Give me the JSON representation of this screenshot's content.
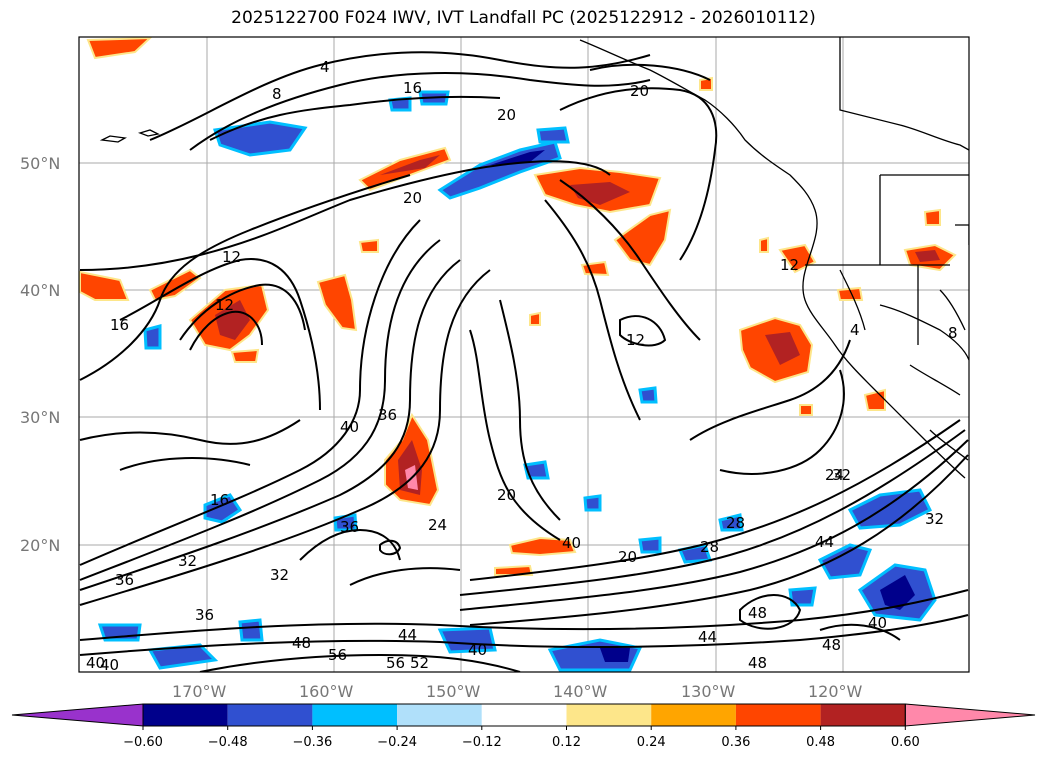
{
  "title": "2025122700 F024 IWV, IVT Landfall PC (2025122912 - 2026010112)",
  "lat_labels": [
    "50°N",
    "40°N",
    "30°N",
    "20°N"
  ],
  "lon_labels": [
    "170°W",
    "160°W",
    "150°W",
    "140°W",
    "130°W",
    "120°W"
  ],
  "colorbar": {
    "ticks": [
      "−0.60",
      "−0.48",
      "−0.36",
      "−0.24",
      "−0.12",
      "0.12",
      "0.24",
      "0.36",
      "0.48",
      "0.60"
    ],
    "colors": [
      "#9932cc",
      "#00008b",
      "#3050d0",
      "#00bfff",
      "#b0e0fa",
      "#ffffff",
      "#fde68a",
      "#ffa500",
      "#ff4500",
      "#b22222",
      "#ff88aa"
    ]
  },
  "contour_labels": [
    "4",
    "8",
    "16",
    "20",
    "20",
    "20",
    "12",
    "16",
    "12",
    "12",
    "4",
    "8",
    "36",
    "40",
    "20",
    "24",
    "28",
    "32",
    "24",
    "36",
    "36",
    "32",
    "32",
    "36",
    "44",
    "48",
    "48",
    "44",
    "48",
    "40",
    "44",
    "40",
    "40",
    "48",
    "56",
    "56",
    "52",
    "40",
    "16",
    "12",
    "28",
    "20",
    "40",
    "32"
  ]
}
